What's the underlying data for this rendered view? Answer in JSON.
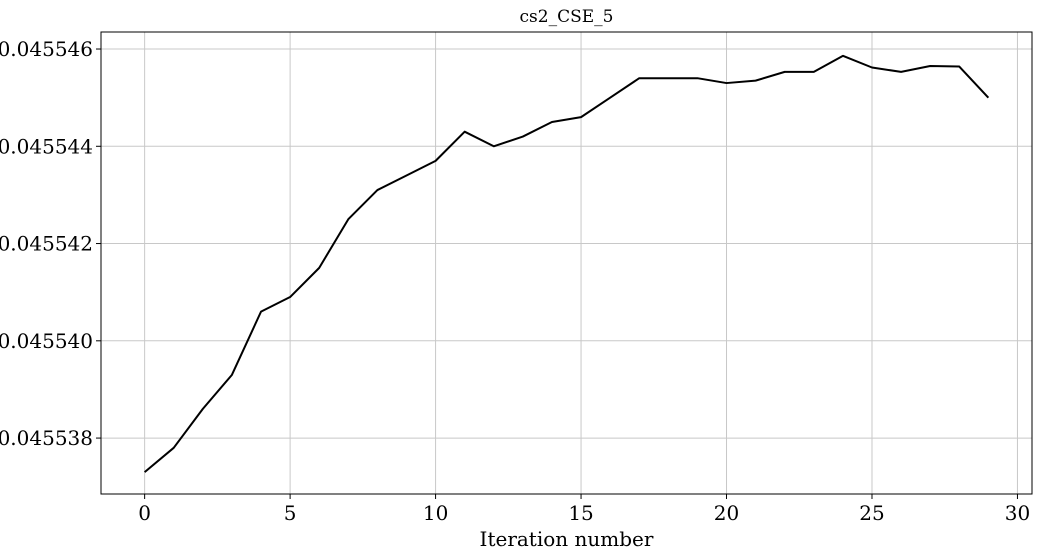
{
  "chart_data": {
    "type": "line",
    "title": "cs2_CSE_5",
    "xlabel": "Iteration number",
    "ylabel": "",
    "xlim": [
      -1.5,
      30.5
    ],
    "ylim": [
      0.04553685,
      0.04554635
    ],
    "xticks": [
      0,
      5,
      10,
      15,
      20,
      25,
      30
    ],
    "xtick_labels": [
      "0",
      "5",
      "10",
      "15",
      "20",
      "25",
      "30"
    ],
    "yticks": [
      0.045538,
      0.04554,
      0.045542,
      0.045544,
      0.045546
    ],
    "ytick_labels": [
      "0.045538",
      "0.045540",
      "0.045542",
      "0.045544",
      "0.045546"
    ],
    "grid": true,
    "color": "#000000",
    "series": [
      {
        "x": [
          0,
          1,
          2,
          3,
          4,
          5,
          6,
          7,
          8,
          9,
          10,
          11,
          12,
          13,
          14,
          15,
          16,
          17,
          18,
          19,
          20,
          21,
          22,
          23,
          24,
          25,
          26,
          27,
          28,
          29
        ],
        "values": [
          0.0455373,
          0.0455378,
          0.0455386,
          0.0455393,
          0.0455406,
          0.0455409,
          0.0455415,
          0.0455425,
          0.0455431,
          0.0455434,
          0.0455437,
          0.0455443,
          0.045544,
          0.0455442,
          0.0455445,
          0.0455446,
          0.045545,
          0.0455454,
          0.0455454,
          0.0455454,
          0.0455453,
          0.04554535,
          0.04554553,
          0.04554553,
          0.04554586,
          0.04554562,
          0.04554553,
          0.04554565,
          0.04554564,
          0.045545
        ]
      }
    ]
  }
}
